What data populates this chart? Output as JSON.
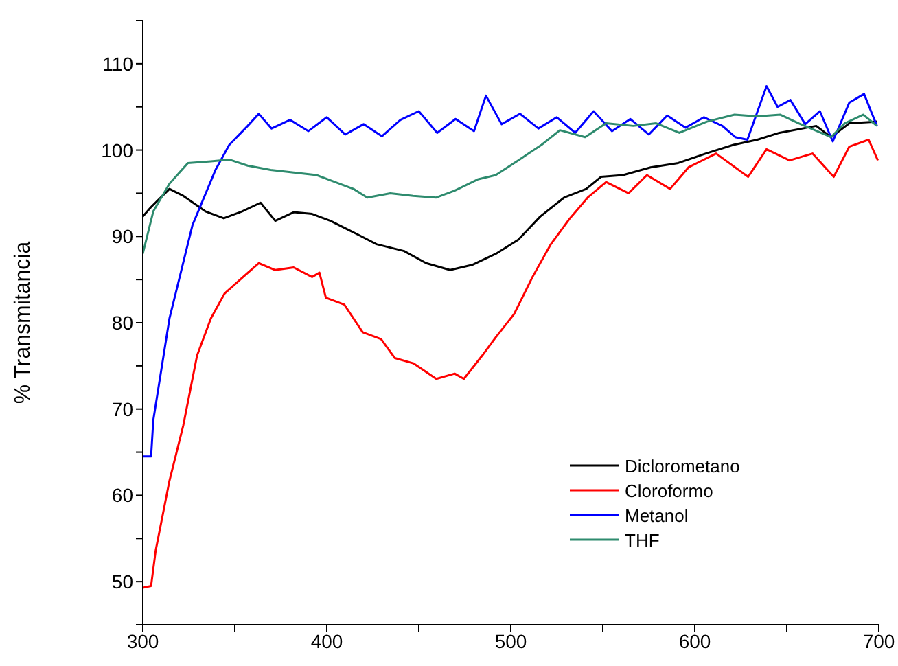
{
  "chart_data": {
    "type": "line",
    "ylabel": "% Transmitancia",
    "xlim": [
      300,
      700
    ],
    "ylim": [
      45,
      115
    ],
    "xticks": [
      300,
      {
        "value": 350,
        "label": null
      },
      400,
      {
        "value": 450,
        "label": null
      },
      500,
      {
        "value": 550,
        "label": null
      },
      600,
      {
        "value": 650,
        "label": null
      },
      700
    ],
    "yticks": [
      {
        "value": 45,
        "label": null
      },
      50,
      {
        "value": 55,
        "label": null
      },
      60,
      {
        "value": 65,
        "label": null
      },
      70,
      {
        "value": 75,
        "label": null
      },
      80,
      {
        "value": 85,
        "label": null
      },
      90,
      {
        "value": 95,
        "label": null
      },
      100,
      {
        "value": 105,
        "label": null
      },
      110,
      {
        "value": 115,
        "label": null
      }
    ],
    "legend": "bottom right",
    "marker": "none",
    "line_style": "solid",
    "series": [
      {
        "name": "Diclorometano",
        "color": "#000000",
        "x": [
          300,
          304.5,
          314.5,
          322,
          334,
          344,
          354,
          364,
          372,
          382,
          392,
          402,
          417,
          427,
          442,
          454,
          467,
          479,
          492,
          504,
          516,
          529,
          541,
          549,
          561,
          576,
          591,
          606,
          621,
          634,
          646,
          666,
          674,
          684,
          699
        ],
        "values": [
          92.3,
          93.4,
          95.5,
          94.7,
          92.9,
          92.1,
          92.9,
          93.9,
          91.8,
          92.8,
          92.6,
          91.8,
          90.2,
          89.1,
          88.3,
          86.9,
          86.1,
          86.7,
          88.0,
          89.6,
          92.3,
          94.5,
          95.5,
          96.9,
          97.1,
          98.0,
          98.5,
          99.6,
          100.6,
          101.2,
          102.0,
          102.8,
          101.5,
          103.1,
          103.3
        ]
      },
      {
        "name": "Cloroformo",
        "color": "#ff0000",
        "x": [
          300,
          304.5,
          307,
          314.5,
          322,
          329.5,
          337,
          344.5,
          354.5,
          363,
          372,
          382,
          392,
          396,
          399.5,
          409.5,
          419.5,
          429.5,
          437,
          447,
          459.5,
          469.5,
          474.5,
          484.5,
          491.8,
          501.8,
          511.8,
          521.8,
          531.8,
          541.8,
          551.8,
          564,
          574,
          586.6,
          596.6,
          611.6,
          629,
          639,
          651.5,
          664,
          675.5,
          684,
          694.5,
          699.5
        ],
        "values": [
          49.3,
          49.5,
          53.6,
          61.7,
          68.1,
          76.2,
          80.5,
          83.4,
          85.3,
          86.9,
          86.1,
          86.4,
          85.3,
          85.8,
          82.9,
          82.1,
          78.9,
          78.1,
          75.9,
          75.3,
          73.5,
          74.1,
          73.5,
          76.2,
          78.3,
          81.0,
          85.3,
          89.1,
          92.0,
          94.5,
          96.3,
          95.0,
          97.1,
          95.5,
          98.0,
          99.6,
          96.9,
          100.1,
          98.8,
          99.6,
          96.9,
          100.4,
          101.2,
          98.8
        ]
      },
      {
        "name": "Metanol",
        "color": "#0000ff",
        "x": [
          300,
          304.5,
          305.7,
          314.5,
          327,
          339.5,
          347,
          357,
          363,
          370,
          380,
          390,
          400,
          410,
          420,
          430,
          440,
          450,
          460,
          470,
          480,
          486.5,
          495,
          505,
          515,
          525,
          535,
          545,
          555,
          565,
          575,
          585,
          595,
          605,
          615,
          622,
          628.6,
          639,
          645,
          652,
          660,
          668,
          675,
          684,
          692,
          699
        ],
        "values": [
          64.5,
          64.5,
          68.7,
          80.5,
          91.3,
          97.7,
          100.6,
          102.8,
          104.2,
          102.5,
          103.5,
          102.2,
          103.8,
          101.8,
          103.0,
          101.6,
          103.5,
          104.5,
          102.0,
          103.6,
          102.2,
          106.3,
          103.0,
          104.2,
          102.5,
          103.8,
          102.0,
          104.5,
          102.2,
          103.6,
          101.8,
          104.0,
          102.6,
          103.8,
          102.8,
          101.5,
          101.2,
          107.4,
          105.0,
          105.8,
          103.0,
          104.5,
          101.0,
          105.5,
          106.5,
          102.8
        ]
      },
      {
        "name": "THF",
        "color": "#2e8b6e",
        "x": [
          300,
          305.7,
          314.5,
          324.5,
          337,
          347,
          357,
          369.5,
          382,
          394.5,
          404.5,
          414.5,
          422,
          434.5,
          447,
          459.5,
          469.5,
          482,
          491.8,
          504,
          516.7,
          526.7,
          540.4,
          551.8,
          566.6,
          579,
          591.6,
          606.6,
          621.6,
          634,
          646.5,
          656.5,
          674,
          681.5,
          691.5,
          699
        ],
        "values": [
          88.0,
          92.9,
          96.1,
          98.5,
          98.7,
          98.9,
          98.2,
          97.7,
          97.4,
          97.1,
          96.3,
          95.5,
          94.5,
          95.0,
          94.7,
          94.5,
          95.3,
          96.6,
          97.1,
          98.8,
          100.6,
          102.3,
          101.5,
          103.1,
          102.8,
          103.1,
          102.0,
          103.3,
          104.1,
          103.9,
          104.1,
          103.1,
          101.5,
          103.1,
          104.1,
          102.8
        ]
      }
    ]
  }
}
